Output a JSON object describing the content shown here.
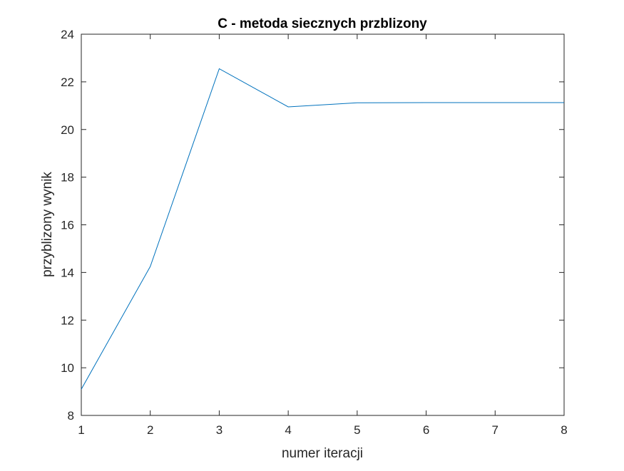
{
  "chart_data": {
    "type": "line",
    "title": "C - metoda siecznych przblizony",
    "xlabel": "numer iteracji",
    "ylabel": "przyblizony wynik",
    "xlim": [
      1,
      8
    ],
    "ylim": [
      8,
      24
    ],
    "xticks": [
      1,
      2,
      3,
      4,
      5,
      6,
      7,
      8
    ],
    "yticks": [
      8,
      10,
      12,
      14,
      16,
      18,
      20,
      22,
      24
    ],
    "grid": false,
    "legend": "none",
    "series": [
      {
        "color": "#0072BD",
        "x": [
          1,
          2,
          3,
          4,
          5,
          6,
          7,
          8
        ],
        "values": [
          9.1,
          14.25,
          22.55,
          20.95,
          21.12,
          21.13,
          21.13,
          21.13
        ]
      }
    ]
  }
}
